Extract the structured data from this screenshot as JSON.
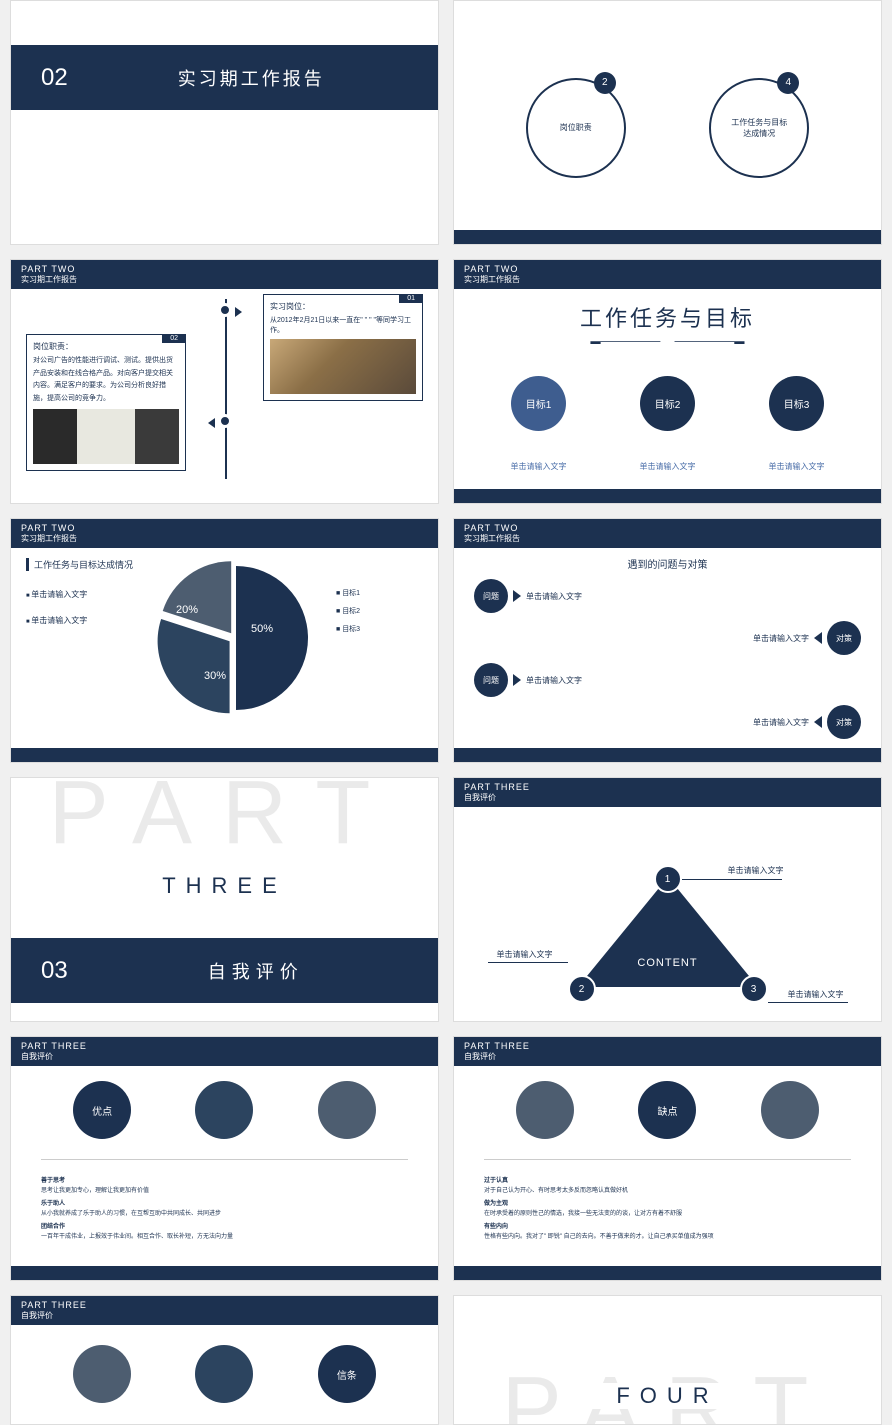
{
  "colors": {
    "navy": "#1c3150",
    "navy2": "#2c445f",
    "slate": "#4d5d70",
    "blue": "#3e5d8f"
  },
  "s1": {
    "num": "02",
    "title": "实习期工作报告"
  },
  "s2": {
    "c1": {
      "badge": "2",
      "label": "岗位职责"
    },
    "c2": {
      "badge": "4",
      "label": "工作任务与目标\n达成情况"
    }
  },
  "s3": {
    "part": "PART TWO",
    "sub": "实习期工作报告",
    "box1": {
      "tag": "02",
      "title": "岗位职责：",
      "text": "对公司广告的性能进行调试、测试。提供出货产品安装和在线合格产品。对向客户提交相关内容。满足客户的要求。为公司分析良好措施，提高公司的竞争力。"
    },
    "box2": {
      "tag": "01",
      "title": "实习岗位：",
      "text": "从2012年2月21日以来一直在\" \" \" \"等同学习工作。"
    }
  },
  "s4": {
    "part": "PART TWO",
    "sub": "实习期工作报告",
    "title": "工作任务与目标",
    "goals": [
      {
        "label": "目标1",
        "color": "#3e5d8f",
        "hint": "单击请输入文字"
      },
      {
        "label": "目标2",
        "color": "#1c3150",
        "hint": "单击请输入文字"
      },
      {
        "label": "目标3",
        "color": "#1c3150",
        "hint": "单击请输入文字"
      }
    ]
  },
  "s5": {
    "part": "PART TWO",
    "sub": "实习期工作报告",
    "heading": "工作任务与目标达成情况",
    "items": [
      "单击请输入文字",
      "单击请输入文字"
    ],
    "pie": {
      "slices": [
        {
          "pct": 50,
          "label": "50%"
        },
        {
          "pct": 30,
          "label": "30%"
        },
        {
          "pct": 20,
          "label": "20%"
        }
      ]
    },
    "legend": [
      "目标1",
      "目标2",
      "目标3"
    ]
  },
  "s6": {
    "part": "PART TWO",
    "sub": "实习期工作报告",
    "title": "遇到的问题与对策",
    "rows": [
      {
        "type": "q",
        "bub": "问题",
        "txt": "单击请输入文字"
      },
      {
        "type": "a",
        "bub": "对策",
        "txt": "单击请输入文字"
      },
      {
        "type": "q",
        "bub": "问题",
        "txt": "单击请输入文字"
      },
      {
        "type": "a",
        "bub": "对策",
        "txt": "单击请输入文字"
      }
    ]
  },
  "s7": {
    "ghost": "PART",
    "word": "THREE",
    "num": "03",
    "title": "自我评价"
  },
  "s8": {
    "part": "PART THREE",
    "sub": "自我评价",
    "center": "CONTENT",
    "nodes": [
      {
        "n": "1",
        "txt": "单击请输入文字"
      },
      {
        "n": "2",
        "txt": "单击请输入文字"
      },
      {
        "n": "3",
        "txt": "单击请输入文字"
      }
    ]
  },
  "s9": {
    "part": "PART THREE",
    "sub": "自我评价",
    "circles": [
      {
        "t": "优点",
        "c": "#1c3150"
      },
      {
        "t": "",
        "c": "#2c445f"
      },
      {
        "t": "",
        "c": "#4d5d70"
      }
    ],
    "blocks": [
      {
        "h": "善于思考",
        "t": "思考让我更加专心，理解让我更加有价值"
      },
      {
        "h": "乐于助人",
        "t": "从小我就养成了乐于助人的习惯，在互帮互助中共同成长、共同进步"
      },
      {
        "h": "团结合作",
        "t": "一百年干成伟业，上报效于伟业间。相互合作、取长补短，方无法向力量"
      }
    ]
  },
  "s10": {
    "part": "PART THREE",
    "sub": "自我评价",
    "circles": [
      {
        "t": "",
        "c": "#4d5d70"
      },
      {
        "t": "缺点",
        "c": "#1c3150"
      },
      {
        "t": "",
        "c": "#4d5d70"
      }
    ],
    "blocks": [
      {
        "h": "过于认真",
        "t": "对于自己认为开心、有时思考太多反而忽略认真做好机"
      },
      {
        "h": "做为主观",
        "t": "在时承受着的原则性己的情选，我接一些无法变的的谈，让对方有着不舒服"
      },
      {
        "h": "有些内向",
        "t": "性格有些内向。我对了\" 即锐\" 自己的去向。不善于做来的才。让自己承买单值成为强项"
      }
    ]
  },
  "s11": {
    "part": "PART THREE",
    "sub": "自我评价",
    "circles": [
      {
        "t": "",
        "c": "#4d5d70"
      },
      {
        "t": "",
        "c": "#2c445f"
      },
      {
        "t": "信条",
        "c": "#1c3150"
      }
    ]
  },
  "s12": {
    "ghost": "PART",
    "word": "FOUR"
  }
}
